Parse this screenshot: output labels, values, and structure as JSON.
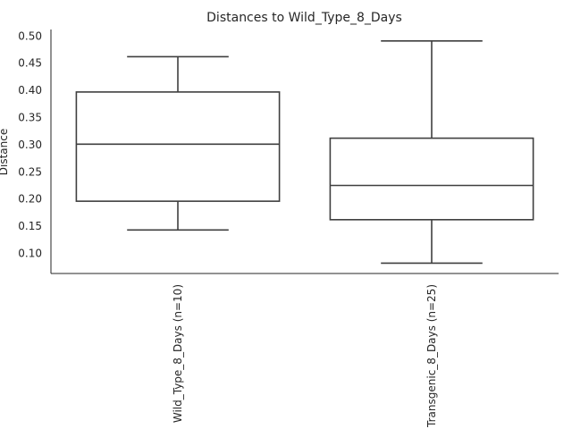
{
  "chart_data": {
    "type": "box",
    "title": "Distances to Wild_Type_8_Days",
    "ylabel": "Distance",
    "xlabel": "",
    "ylim": [
      0.063,
      0.512
    ],
    "yticks": [
      "0.10",
      "0.15",
      "0.20",
      "0.25",
      "0.30",
      "0.35",
      "0.40",
      "0.45",
      "0.50"
    ],
    "categories": [
      "Wild_Type_8_Days (n=10)",
      "Transgenic_8_Days (n=25)"
    ],
    "boxes": [
      {
        "category": "Wild_Type_8_Days (n=10)",
        "whisker_low": 0.143,
        "q1": 0.196,
        "median": 0.301,
        "q3": 0.397,
        "whisker_high": 0.462
      },
      {
        "category": "Transgenic_8_Days (n=25)",
        "whisker_low": 0.082,
        "q1": 0.162,
        "median": 0.225,
        "q3": 0.312,
        "whisker_high": 0.491
      }
    ],
    "grid": false,
    "legend": "none",
    "colors": {
      "box_edge": "#3f3f3f",
      "box_fill": "#ffffff",
      "axis": "#262626",
      "text": "#262626"
    }
  }
}
